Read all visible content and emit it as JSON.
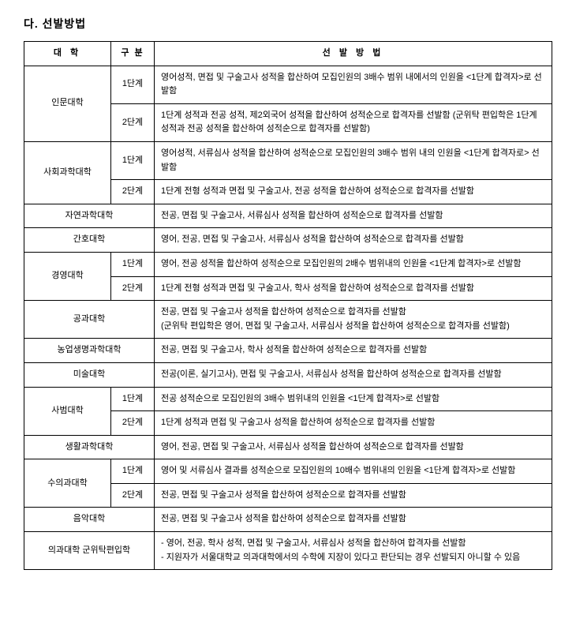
{
  "section_title": "다. 선발방법",
  "headers": {
    "univ": "대 학",
    "phase": "구 분",
    "method": "선 발 방 법"
  },
  "rows": [
    {
      "univ": "인문대학",
      "phase": "1단계",
      "method": "영어성적, 면접 및 구술고사 성적을 합산하여 모집인원의 3배수 범위 내에서의 인원을 <1단계 합격자>로 선발함",
      "rowspan_univ": 2
    },
    {
      "univ": "",
      "phase": "2단계",
      "method": "1단계 성적과 전공 성적, 제2외국어 성적을 합산하여 성적순으로 합격자를 선발함 (군위탁 편입학은 1단계 성적과 전공 성적을 합산하여 성적순으로 합격자를 선발함)"
    },
    {
      "univ": "사회과학대학",
      "phase": "1단계",
      "method": "영어성적, 서류심사 성적을 합산하여 성적순으로 모집인원의 3배수 범위 내의 인원을 <1단계 합격자로> 선발함",
      "rowspan_univ": 2
    },
    {
      "univ": "",
      "phase": "2단계",
      "method": "1단계 전형 성적과 면접 및 구술고사, 전공 성적을 합산하여 성적순으로 합격자를 선발함"
    },
    {
      "univ": "자연과학대학",
      "phase": "",
      "method": "전공, 면접 및 구술고사, 서류심사 성적을 합산하여 성적순으로 합격자를 선발함",
      "colspan_univ": 2
    },
    {
      "univ": "간호대학",
      "phase": "",
      "method": "영어, 전공, 면접 및 구술고사, 서류심사 성적을 합산하여 성적순으로 합격자를 선발함",
      "colspan_univ": 2
    },
    {
      "univ": "경영대학",
      "phase": "1단계",
      "method": "영어, 전공 성적을 합산하여 성적순으로 모집인원의 2배수 범위내의 인원을 <1단계 합격자>로 선발함",
      "rowspan_univ": 2
    },
    {
      "univ": "",
      "phase": "2단계",
      "method": "1단계 전형 성적과 면접 및 구술고사, 학사 성적을 합산하여 성적순으로 합격자를 선발함"
    },
    {
      "univ": "공과대학",
      "phase": "",
      "method": "전공, 면접 및 구술고사 성적을 합산하여 성적순으로 합격자를 선발함\n(군위탁 편입학은 영어, 면접 및 구술고사, 서류심사 성적을 합산하여 성적순으로 합격자를 선발함)",
      "colspan_univ": 2
    },
    {
      "univ": "농업생명과학대학",
      "phase": "",
      "method": "전공, 면접 및 구술고사, 학사 성적을 합산하여 성적순으로 합격자를 선발함",
      "colspan_univ": 2
    },
    {
      "univ": "미술대학",
      "phase": "",
      "method": "전공(이론, 실기고사), 면접 및 구술고사, 서류심사 성적을 합산하여 성적순으로 합격자를 선발함",
      "colspan_univ": 2
    },
    {
      "univ": "사범대학",
      "phase": "1단계",
      "method": "전공 성적순으로 모집인원의 3배수 범위내의 인원을 <1단계 합격자>로 선발함",
      "rowspan_univ": 2
    },
    {
      "univ": "",
      "phase": "2단계",
      "method": "1단계 성적과 면접 및 구술고사 성적을 합산하여 성적순으로 합격자를 선발함"
    },
    {
      "univ": "생활과학대학",
      "phase": "",
      "method": "영어, 전공, 면접 및 구술고사, 서류심사 성적을 합산하여 성적순으로 합격자를 선발함",
      "colspan_univ": 2
    },
    {
      "univ": "수의과대학",
      "phase": "1단계",
      "method": "영어 및 서류심사 결과를 성적순으로 모집인원의 10배수 범위내의 인원을 <1단계 합격자>로 선발함",
      "rowspan_univ": 2
    },
    {
      "univ": "",
      "phase": "2단계",
      "method": "전공, 면접 및 구술고사 성적을 합산하여 성적순으로 합격자를 선발함"
    },
    {
      "univ": "음악대학",
      "phase": "",
      "method": "전공, 면접 및 구술고사 성적을 합산하여 성적순으로 합격자를 선발함",
      "colspan_univ": 2
    },
    {
      "univ": "의과대학 군위탁편입학",
      "phase": "",
      "method": "- 영어, 전공, 학사 성적, 면접 및 구술고사, 서류심사 성적을 합산하여 합격자를 선발함\n- 지원자가 서울대학교 의과대학에서의 수학에 지장이 있다고 판단되는 경우 선발되지 아니할 수 있음",
      "colspan_univ": 2
    }
  ]
}
